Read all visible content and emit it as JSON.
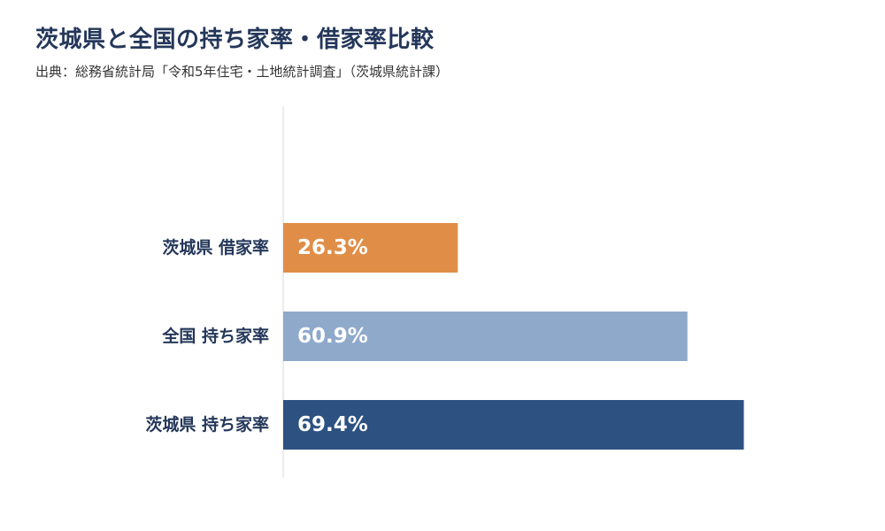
{
  "header": {
    "title": "茨城県と全国の持ち家率・借家率比較",
    "source": "出典：総務省統計局「令和5年住宅・土地統計調査」（茨城県統計課）"
  },
  "colors": {
    "orange": "#e08e47",
    "light_blue": "#8fa9cb",
    "navy": "#2d5281",
    "axis": "#d9d9d9",
    "text": "#24375a"
  },
  "chart_data": {
    "type": "bar",
    "orientation": "horizontal",
    "title": "茨城県と全国の持ち家率・借家率比較",
    "subtitle": "出典：総務省統計局「令和5年住宅・土地統計調査」（茨城県統計課）",
    "unit": "%",
    "xlim": [
      0,
      100
    ],
    "grid": false,
    "categories": [
      "茨城県 借家率",
      "全国 持ち家率",
      "茨城県 持ち家率"
    ],
    "values": [
      26.3,
      60.9,
      69.4
    ],
    "value_labels": [
      "26.3%",
      "60.9%",
      "69.4%"
    ],
    "bar_colors": [
      "#e08e47",
      "#8fa9cb",
      "#2d5281"
    ]
  }
}
